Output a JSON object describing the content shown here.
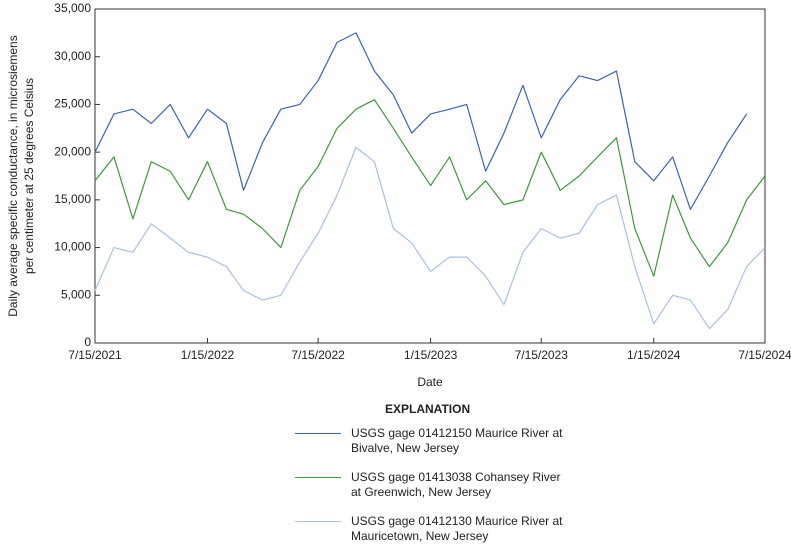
{
  "chart_data": {
    "type": "line",
    "x_label": "Date",
    "y_label": [
      "Daily average specific conductance, in microsiemens",
      "per centimeter at 25 degrees Celsius"
    ],
    "legend_title": "EXPLANATION",
    "legend_position": "bottom",
    "xlim": [
      "2021-07-15",
      "2024-07-15"
    ],
    "xticks": [
      {
        "value": "2021-07-15",
        "label": "7/15/2021"
      },
      {
        "value": "2022-01-15",
        "label": "1/15/2022"
      },
      {
        "value": "2022-07-15",
        "label": "7/15/2022"
      },
      {
        "value": "2023-01-15",
        "label": "1/15/2023"
      },
      {
        "value": "2023-07-15",
        "label": "7/15/2023"
      },
      {
        "value": "2024-01-15",
        "label": "1/15/2024"
      },
      {
        "value": "2024-07-15",
        "label": "7/15/2024"
      }
    ],
    "ylim": [
      0,
      35000
    ],
    "yticks": [
      0,
      {
        "value": 5000,
        "label": "5,000"
      },
      {
        "value": 10000,
        "label": "10,000"
      },
      {
        "value": 15000,
        "label": "15,000"
      },
      {
        "value": 20000,
        "label": "20,000"
      },
      {
        "value": 25000,
        "label": "25,000"
      },
      {
        "value": 30000,
        "label": "30,000"
      },
      {
        "value": 35000,
        "label": "35,000"
      }
    ],
    "grid": false,
    "x": [
      "2021-07-15",
      "2021-08-15",
      "2021-09-15",
      "2021-10-15",
      "2021-11-15",
      "2021-12-15",
      "2022-01-15",
      "2022-02-15",
      "2022-03-15",
      "2022-04-15",
      "2022-05-15",
      "2022-06-15",
      "2022-07-15",
      "2022-08-15",
      "2022-09-15",
      "2022-10-15",
      "2022-11-15",
      "2022-12-15",
      "2023-01-15",
      "2023-02-15",
      "2023-03-15",
      "2023-04-15",
      "2023-05-15",
      "2023-06-15",
      "2023-07-15",
      "2023-08-15",
      "2023-09-15",
      "2023-10-15",
      "2023-11-15",
      "2023-12-15",
      "2024-01-15",
      "2024-02-15",
      "2024-03-15",
      "2024-04-15",
      "2024-05-15",
      "2024-06-15",
      "2024-07-15"
    ],
    "series": [
      {
        "name": "USGS gage 01412150 Maurice River at Bivalve, New Jersey",
        "color": "#3a64b0",
        "values": [
          20000,
          24000,
          24500,
          23000,
          25000,
          21500,
          24500,
          23000,
          16000,
          21000,
          24500,
          25000,
          27500,
          31500,
          32500,
          28500,
          26000,
          22000,
          24000,
          24500,
          25000,
          18000,
          22000,
          27000,
          21500,
          25500,
          28000,
          27500,
          28500,
          19000,
          17000,
          19500,
          14000,
          17500,
          21000,
          24000,
          null
        ]
      },
      {
        "name": "USGS gage 01413038 Cohansey River at Greenwich, New Jersey",
        "color": "#3c9a3c",
        "values": [
          17000,
          19500,
          13000,
          19000,
          18000,
          15000,
          19000,
          14000,
          13500,
          12000,
          10000,
          16000,
          18500,
          22500,
          24500,
          25500,
          22500,
          19500,
          16500,
          19500,
          15000,
          17000,
          14500,
          15000,
          20000,
          16000,
          17500,
          19500,
          21500,
          12000,
          7000,
          15500,
          11000,
          8000,
          10500,
          15000,
          17500
        ]
      },
      {
        "name": "USGS gage 01412130 Maurice River at Mauricetown, New Jersey",
        "color": "#a9c1e4",
        "values": [
          5500,
          10000,
          9500,
          12500,
          11000,
          9500,
          9000,
          8000,
          5500,
          4500,
          5000,
          8500,
          11500,
          15500,
          20500,
          19000,
          12000,
          10500,
          7500,
          9000,
          9000,
          7000,
          4000,
          9500,
          12000,
          11000,
          11500,
          14500,
          15500,
          8000,
          2000,
          5000,
          4500,
          1500,
          3500,
          8000,
          10000
        ]
      }
    ]
  }
}
